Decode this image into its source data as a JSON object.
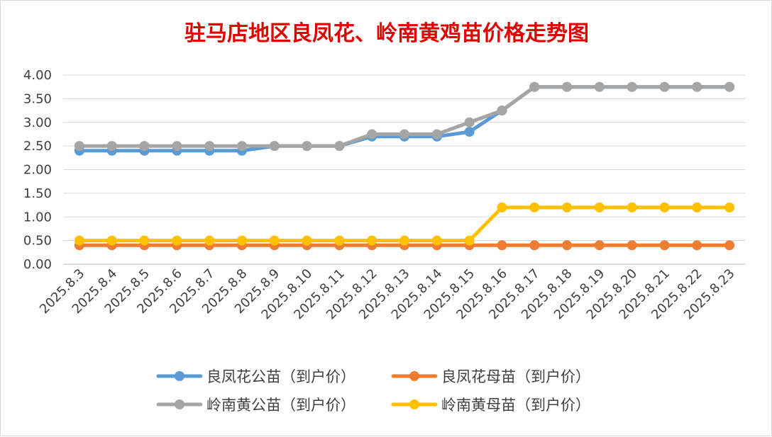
{
  "chart_data": {
    "type": "line",
    "title": "驻马店地区良凤花、岭南黄鸡苗价格走势图",
    "xlabel": "",
    "ylabel": "",
    "ylim": [
      0,
      4
    ],
    "y_ticks": [
      "0.00",
      "0.50",
      "1.00",
      "1.50",
      "2.00",
      "2.50",
      "3.00",
      "3.50",
      "4.00"
    ],
    "grid": true,
    "legend_position": "bottom",
    "categories": [
      "2025.8.3",
      "2025.8.4",
      "2025.8.5",
      "2025.8.6",
      "2025.8.7",
      "2025.8.8",
      "2025.8.9",
      "2025.8.10",
      "2025.8.11",
      "2025.8.12",
      "2025.8.13",
      "2025.8.14",
      "2025.8.15",
      "2025.8.16",
      "2025.8.17",
      "2025.8.18",
      "2025.8.19",
      "2025.8.20",
      "2025.8.21",
      "2025.8.22",
      "2025.8.23"
    ],
    "series": [
      {
        "name": "良凤花公苗（到户价）",
        "color": "#5b9bd5",
        "values": [
          2.4,
          2.4,
          2.4,
          2.4,
          2.4,
          2.4,
          2.5,
          2.5,
          2.5,
          2.7,
          2.7,
          2.7,
          2.8,
          3.25,
          3.75,
          3.75,
          3.75,
          3.75,
          3.75,
          3.75,
          3.75
        ]
      },
      {
        "name": "良凤花母苗（到户价）",
        "color": "#ed7d31",
        "values": [
          0.4,
          0.4,
          0.4,
          0.4,
          0.4,
          0.4,
          0.4,
          0.4,
          0.4,
          0.4,
          0.4,
          0.4,
          0.4,
          0.4,
          0.4,
          0.4,
          0.4,
          0.4,
          0.4,
          0.4,
          0.4
        ]
      },
      {
        "name": "岭南黄公苗（到户价）",
        "color": "#a5a5a5",
        "values": [
          2.5,
          2.5,
          2.5,
          2.5,
          2.5,
          2.5,
          2.5,
          2.5,
          2.5,
          2.75,
          2.75,
          2.75,
          3.0,
          3.25,
          3.75,
          3.75,
          3.75,
          3.75,
          3.75,
          3.75,
          3.75
        ]
      },
      {
        "name": "岭南黄母苗（到户价）",
        "color": "#ffc000",
        "values": [
          0.5,
          0.5,
          0.5,
          0.5,
          0.5,
          0.5,
          0.5,
          0.5,
          0.5,
          0.5,
          0.5,
          0.5,
          0.5,
          1.2,
          1.2,
          1.2,
          1.2,
          1.2,
          1.2,
          1.2,
          1.2
        ]
      }
    ]
  }
}
